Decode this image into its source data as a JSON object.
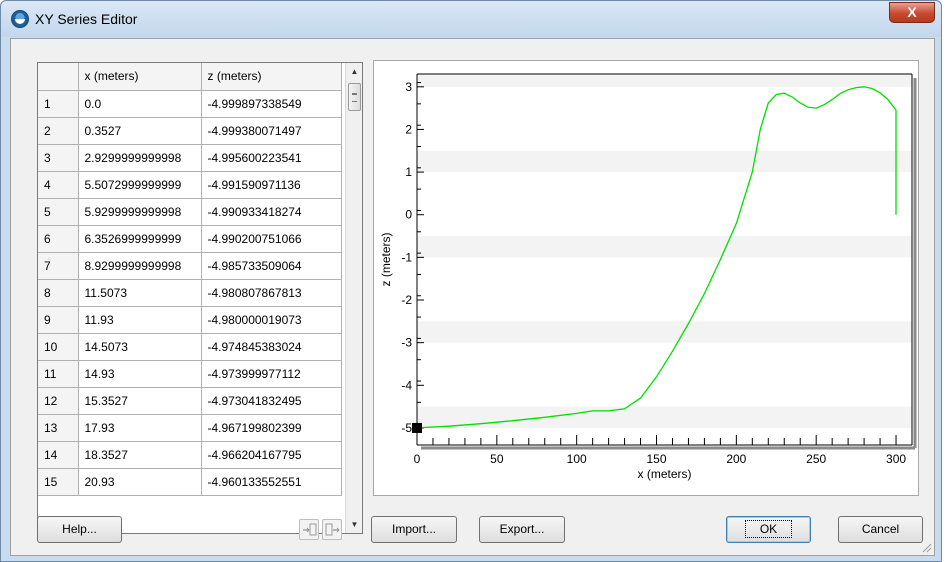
{
  "window": {
    "title": "XY Series Editor",
    "close_label": "X"
  },
  "table": {
    "columns": [
      "",
      "x (meters)",
      "z (meters)"
    ],
    "rows": [
      [
        "1",
        "0.0",
        "-4.999897338549"
      ],
      [
        "2",
        "0.3527",
        "-4.999380071497"
      ],
      [
        "3",
        "2.9299999999998",
        "-4.995600223541"
      ],
      [
        "4",
        "5.5072999999999",
        "-4.991590971136"
      ],
      [
        "5",
        "5.9299999999998",
        "-4.990933418274"
      ],
      [
        "6",
        "6.3526999999999",
        "-4.990200751066"
      ],
      [
        "7",
        "8.9299999999998",
        "-4.985733509064"
      ],
      [
        "8",
        "11.5073",
        "-4.980807867813"
      ],
      [
        "9",
        "11.93",
        "-4.980000019073"
      ],
      [
        "10",
        "14.5073",
        "-4.974845383024"
      ],
      [
        "11",
        "14.93",
        "-4.973999977112"
      ],
      [
        "12",
        "15.3527",
        "-4.973041832495"
      ],
      [
        "13",
        "17.93",
        "-4.967199802399"
      ],
      [
        "14",
        "18.3527",
        "-4.966204167795"
      ],
      [
        "15",
        "20.93",
        "-4.960133552551"
      ]
    ]
  },
  "buttons": {
    "help": "Help...",
    "import": "Import...",
    "export": "Export...",
    "ok": "OK",
    "cancel": "Cancel"
  },
  "icons": {
    "insert_row": "insert-row-icon",
    "add_row": "add-row-icon",
    "app": "globe-icon"
  },
  "colors": {
    "series": "#00e000",
    "band": "#f3f3f3"
  },
  "chart_data": {
    "type": "line",
    "title": "",
    "xlabel": "x (meters)",
    "ylabel": "z (meters)",
    "xlim": [
      0,
      310
    ],
    "ylim": [
      -5.4,
      3.3
    ],
    "xticks": [
      0,
      50,
      100,
      150,
      200,
      250,
      300
    ],
    "yticks": [
      -5,
      -4,
      -3,
      -2,
      -1,
      0,
      1,
      2,
      3
    ],
    "series": [
      {
        "x": [
          0,
          20,
          40,
          60,
          80,
          100,
          110,
          120,
          130,
          140,
          150,
          160,
          170,
          180,
          190,
          200,
          210,
          215,
          220,
          225,
          230,
          235,
          240,
          245,
          250,
          255,
          260,
          265,
          270,
          275,
          280,
          285,
          290,
          295,
          300,
          300
        ],
        "y": [
          -5.0,
          -4.96,
          -4.9,
          -4.83,
          -4.75,
          -4.66,
          -4.6,
          -4.6,
          -4.55,
          -4.3,
          -3.8,
          -3.2,
          -2.55,
          -1.85,
          -1.05,
          -0.2,
          1.0,
          2.0,
          2.62,
          2.82,
          2.85,
          2.76,
          2.62,
          2.52,
          2.5,
          2.58,
          2.7,
          2.84,
          2.93,
          2.98,
          3.0,
          2.96,
          2.86,
          2.7,
          2.45,
          0.0
        ]
      }
    ]
  }
}
